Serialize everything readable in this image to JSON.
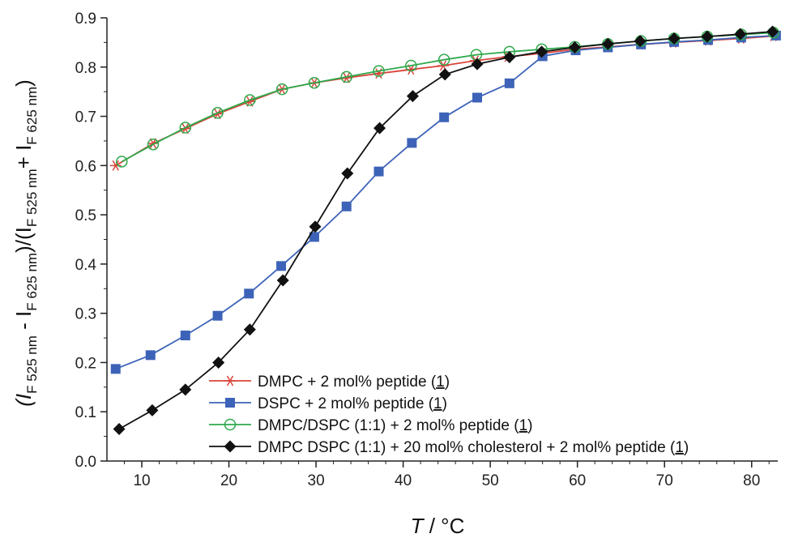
{
  "chart_data": {
    "type": "line",
    "xlabel": {
      "var": "T",
      "rest": " / °C"
    },
    "ylabel_parts": [
      "(I",
      "F 525 nm",
      " - I",
      "F 625 nm",
      ")/(I",
      "F 525 nm",
      "+ I",
      "F 625 nm",
      ")"
    ],
    "xlim": [
      6,
      83
    ],
    "ylim": [
      0,
      0.9
    ],
    "xticks": [
      10,
      20,
      30,
      40,
      50,
      60,
      70,
      80
    ],
    "yticks": [
      0.0,
      0.1,
      0.2,
      0.3,
      0.4,
      0.5,
      0.6,
      0.7,
      0.8,
      0.9
    ],
    "legend_position": "bottom-right",
    "series": [
      {
        "name": "DMPC + 2 mol% peptide (1)",
        "color": "#d9453a",
        "marker": "asterisk",
        "x": [
          7.0,
          11.3,
          15.0,
          18.7,
          22.4,
          26.1,
          29.8,
          33.5,
          37.2,
          40.9,
          44.6,
          48.3,
          52.0,
          55.9,
          59.7,
          63.5,
          67.2,
          71.0,
          75.0,
          78.8,
          82.5
        ],
        "y": [
          0.6,
          0.645,
          0.675,
          0.705,
          0.73,
          0.755,
          0.768,
          0.778,
          0.787,
          0.795,
          0.803,
          0.813,
          0.821,
          0.828,
          0.836,
          0.841,
          0.846,
          0.85,
          0.854,
          0.858,
          0.863
        ]
      },
      {
        "name": "DSPC + 2 mol% peptide (1)",
        "color": "#3d63b8",
        "marker": "square",
        "x": [
          7.0,
          11.0,
          15.0,
          18.7,
          22.3,
          26.0,
          29.8,
          33.5,
          37.2,
          41.0,
          44.7,
          48.5,
          52.2,
          56.0,
          59.8,
          63.5,
          67.3,
          71.1,
          75.0,
          78.8,
          82.8
        ],
        "y": [
          0.187,
          0.215,
          0.255,
          0.295,
          0.34,
          0.396,
          0.455,
          0.517,
          0.588,
          0.646,
          0.698,
          0.738,
          0.767,
          0.822,
          0.834,
          0.84,
          0.846,
          0.851,
          0.855,
          0.86,
          0.864
        ]
      },
      {
        "name": "DMPC/DSPC (1:1) + 2 mol% peptide (1)",
        "color": "#2ea84b",
        "marker": "circle",
        "x": [
          7.7,
          11.3,
          15.0,
          18.7,
          22.4,
          26.1,
          29.8,
          33.5,
          37.2,
          40.9,
          44.7,
          48.4,
          52.2,
          55.9,
          59.7,
          63.5,
          67.3,
          71.1,
          74.9,
          78.8,
          82.5
        ],
        "y": [
          0.608,
          0.643,
          0.677,
          0.707,
          0.733,
          0.755,
          0.768,
          0.78,
          0.792,
          0.803,
          0.815,
          0.825,
          0.831,
          0.836,
          0.841,
          0.847,
          0.853,
          0.858,
          0.862,
          0.866,
          0.87
        ]
      },
      {
        "name": "DMPC DSPC (1:1) + 20 mol% cholesterol + 2 mol% peptide (1)",
        "color": "#111111",
        "marker": "diamond",
        "x": [
          7.4,
          11.2,
          15.0,
          18.8,
          22.4,
          26.2,
          29.9,
          33.6,
          37.3,
          41.1,
          44.8,
          48.5,
          52.2,
          55.9,
          59.7,
          63.5,
          67.2,
          71.1,
          74.9,
          78.7,
          82.4
        ],
        "y": [
          0.065,
          0.103,
          0.145,
          0.2,
          0.267,
          0.367,
          0.476,
          0.584,
          0.676,
          0.741,
          0.785,
          0.806,
          0.82,
          0.831,
          0.84,
          0.847,
          0.853,
          0.858,
          0.862,
          0.867,
          0.872
        ]
      }
    ]
  }
}
